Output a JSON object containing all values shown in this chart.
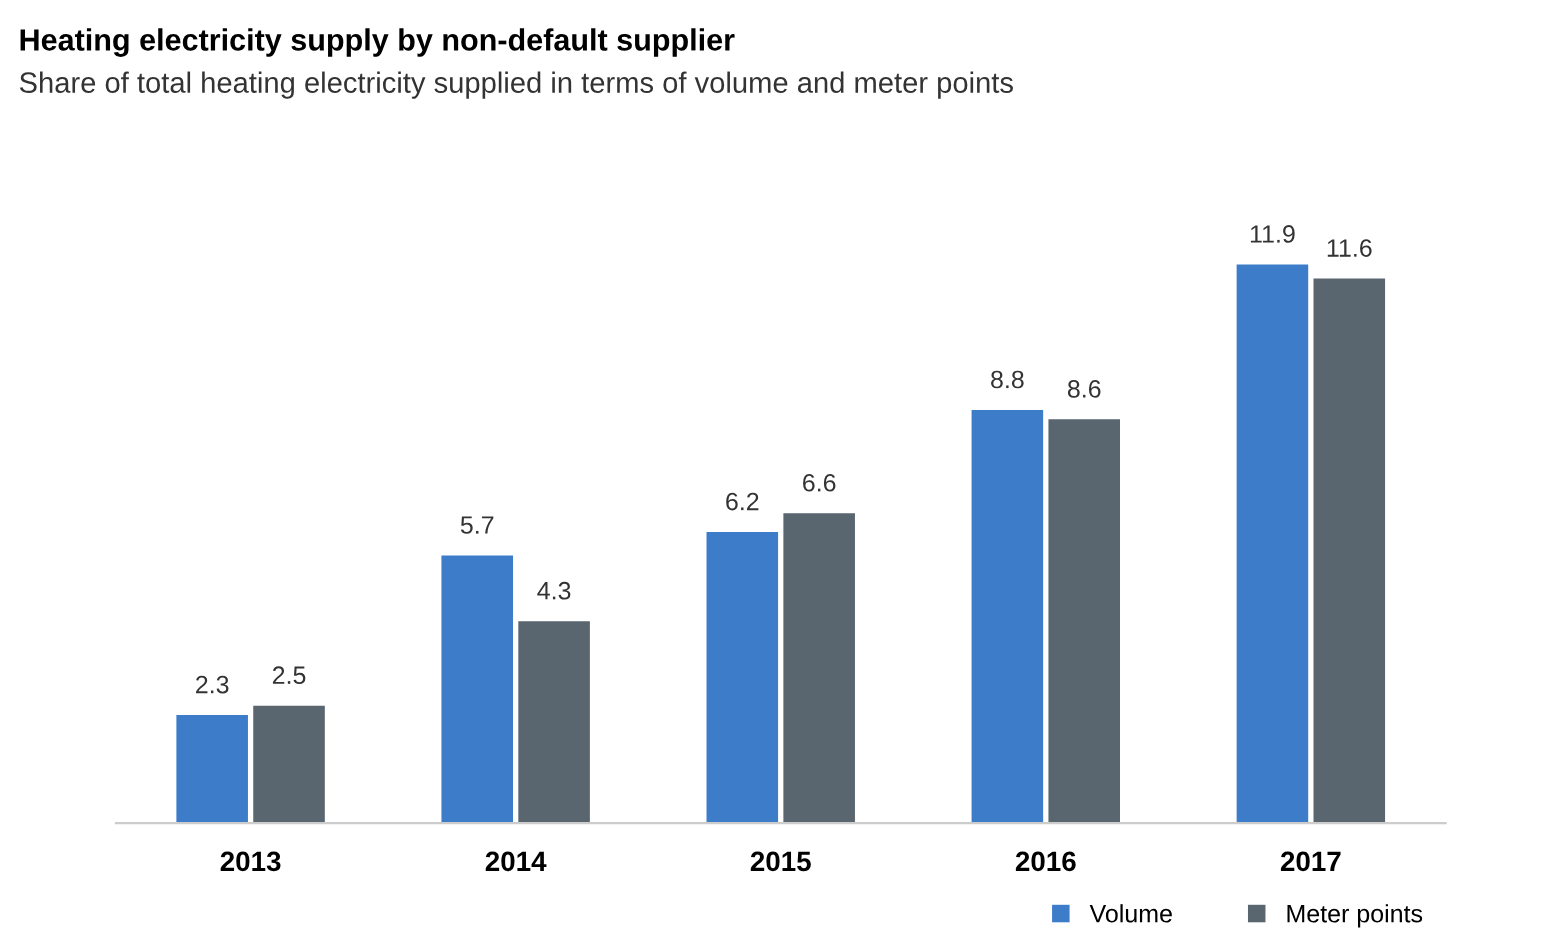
{
  "chart_data": {
    "type": "bar",
    "title": "Heating electricity supply by non-default supplier",
    "subtitle": "Share of total heating electricity supplied in terms of volume and meter points",
    "categories": [
      "2013",
      "2014",
      "2015",
      "2016",
      "2017"
    ],
    "series": [
      {
        "name": "Volume",
        "color": "#3d7cc9",
        "values": [
          2.3,
          5.7,
          6.2,
          8.8,
          11.9
        ]
      },
      {
        "name": "Meter points",
        "color": "#59656f",
        "values": [
          2.5,
          4.3,
          6.6,
          8.6,
          11.6
        ]
      }
    ],
    "data_labels": true,
    "grid": false,
    "legend": "bottom right",
    "tick_labels": "x"
  }
}
